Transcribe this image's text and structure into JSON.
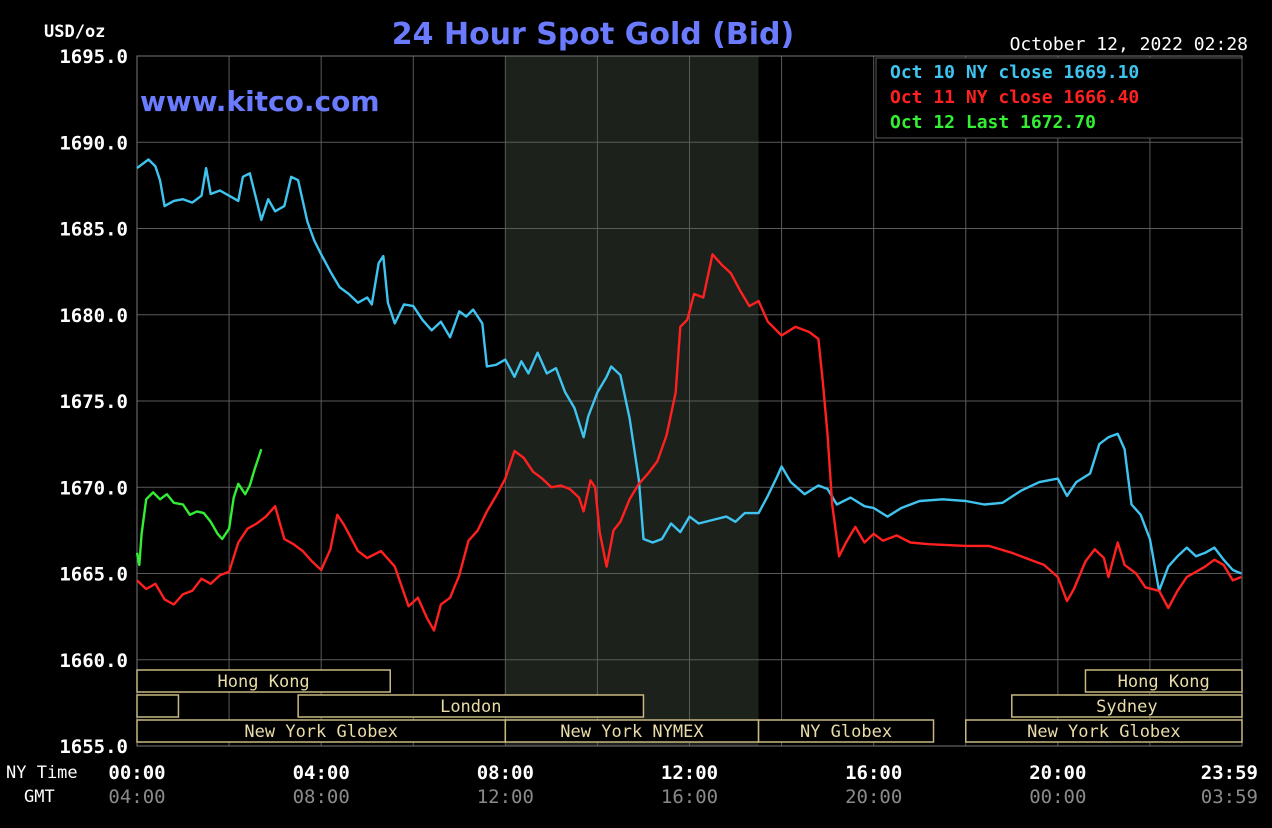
{
  "title": "24 Hour Spot Gold (Bid)",
  "site": "www.kitco.com",
  "timestamp": "October 12, 2022 02:28",
  "y_unit": "USD/oz",
  "row_labels": {
    "ny": "NY Time",
    "gmt": "GMT"
  },
  "colors": {
    "background": "#000000",
    "grid": "#5a5a5a",
    "title": "#6b7bff",
    "site": "#6b7bff",
    "text": "#ffffff",
    "gmt_text": "#8a8a8a",
    "oct10": "#3fc3ef",
    "oct11": "#ff2020",
    "oct12": "#33ee33",
    "session_fill": "#000000",
    "session_border": "#c8b880",
    "session_text": "#e8dca8",
    "nymex_shade": "#1c211c"
  },
  "chart_data": {
    "type": "line",
    "title": "24 Hour Spot Gold (Bid)",
    "xlabel": "",
    "ylabel": "USD/oz",
    "x_unit": "hours (NY time)",
    "xlim": [
      0,
      24
    ],
    "ylim": [
      1655,
      1695
    ],
    "grid": true,
    "legend_position": "top-right",
    "y_ticks": [
      "1695.0",
      "1690.0",
      "1685.0",
      "1680.0",
      "1675.0",
      "1670.0",
      "1665.0",
      "1660.0",
      "1655.0"
    ],
    "x_ticks_ny": [
      {
        "x": 0,
        "label": "00:00"
      },
      {
        "x": 4,
        "label": "04:00"
      },
      {
        "x": 8,
        "label": "08:00"
      },
      {
        "x": 12,
        "label": "12:00"
      },
      {
        "x": 16,
        "label": "16:00"
      },
      {
        "x": 20,
        "label": "20:00"
      },
      {
        "x": 23.983,
        "label": "23:59"
      }
    ],
    "x_ticks_gmt": [
      {
        "x": 0,
        "label": "04:00"
      },
      {
        "x": 4,
        "label": "08:00"
      },
      {
        "x": 8,
        "label": "12:00"
      },
      {
        "x": 12,
        "label": "16:00"
      },
      {
        "x": 16,
        "label": "20:00"
      },
      {
        "x": 20,
        "label": "00:00"
      },
      {
        "x": 23.983,
        "label": "03:59"
      }
    ],
    "legend": [
      {
        "label": "Oct 10 NY close 1669.10",
        "color": "#3fc3ef"
      },
      {
        "label": "Oct 11 NY close 1666.40",
        "color": "#ff2020"
      },
      {
        "label": "Oct 12 Last 1672.70",
        "color": "#33ee33"
      }
    ],
    "nymex_shade": [
      8.0,
      13.5
    ],
    "series": [
      {
        "name": "Oct 10",
        "color": "#3fc3ef",
        "points": [
          [
            0.0,
            1688.5
          ],
          [
            0.25,
            1689.0
          ],
          [
            0.4,
            1688.6
          ],
          [
            0.5,
            1687.8
          ],
          [
            0.6,
            1686.3
          ],
          [
            0.8,
            1686.6
          ],
          [
            1.0,
            1686.7
          ],
          [
            1.2,
            1686.5
          ],
          [
            1.4,
            1686.9
          ],
          [
            1.5,
            1688.5
          ],
          [
            1.6,
            1687.0
          ],
          [
            1.8,
            1687.2
          ],
          [
            2.0,
            1686.9
          ],
          [
            2.2,
            1686.6
          ],
          [
            2.3,
            1688.0
          ],
          [
            2.45,
            1688.2
          ],
          [
            2.6,
            1686.6
          ],
          [
            2.7,
            1685.5
          ],
          [
            2.85,
            1686.7
          ],
          [
            3.0,
            1686.0
          ],
          [
            3.2,
            1686.3
          ],
          [
            3.35,
            1688.0
          ],
          [
            3.5,
            1687.8
          ],
          [
            3.7,
            1685.4
          ],
          [
            3.85,
            1684.3
          ],
          [
            4.0,
            1683.5
          ],
          [
            4.2,
            1682.5
          ],
          [
            4.4,
            1681.6
          ],
          [
            4.6,
            1681.2
          ],
          [
            4.8,
            1680.7
          ],
          [
            5.0,
            1681.0
          ],
          [
            5.1,
            1680.6
          ],
          [
            5.25,
            1683.0
          ],
          [
            5.35,
            1683.4
          ],
          [
            5.45,
            1680.7
          ],
          [
            5.6,
            1679.5
          ],
          [
            5.8,
            1680.6
          ],
          [
            6.0,
            1680.5
          ],
          [
            6.2,
            1679.7
          ],
          [
            6.4,
            1679.1
          ],
          [
            6.6,
            1679.6
          ],
          [
            6.8,
            1678.7
          ],
          [
            7.0,
            1680.2
          ],
          [
            7.15,
            1679.9
          ],
          [
            7.3,
            1680.3
          ],
          [
            7.5,
            1679.5
          ],
          [
            7.6,
            1677.0
          ],
          [
            7.8,
            1677.1
          ],
          [
            8.0,
            1677.4
          ],
          [
            8.2,
            1676.4
          ],
          [
            8.35,
            1677.3
          ],
          [
            8.5,
            1676.6
          ],
          [
            8.7,
            1677.8
          ],
          [
            8.9,
            1676.6
          ],
          [
            9.1,
            1676.9
          ],
          [
            9.3,
            1675.5
          ],
          [
            9.5,
            1674.6
          ],
          [
            9.7,
            1672.9
          ],
          [
            9.8,
            1674.1
          ],
          [
            10.0,
            1675.5
          ],
          [
            10.2,
            1676.4
          ],
          [
            10.3,
            1677.0
          ],
          [
            10.5,
            1676.5
          ],
          [
            10.7,
            1674.0
          ],
          [
            10.9,
            1670.4
          ],
          [
            11.0,
            1667.0
          ],
          [
            11.2,
            1666.8
          ],
          [
            11.4,
            1667.0
          ],
          [
            11.6,
            1667.9
          ],
          [
            11.8,
            1667.4
          ],
          [
            12.0,
            1668.3
          ],
          [
            12.2,
            1667.9
          ],
          [
            12.5,
            1668.1
          ],
          [
            12.8,
            1668.3
          ],
          [
            13.0,
            1668.0
          ],
          [
            13.2,
            1668.5
          ],
          [
            13.5,
            1668.5
          ],
          [
            13.7,
            1669.5
          ],
          [
            13.9,
            1670.6
          ],
          [
            14.0,
            1671.2
          ],
          [
            14.2,
            1670.3
          ],
          [
            14.5,
            1669.6
          ],
          [
            14.8,
            1670.1
          ],
          [
            15.0,
            1669.9
          ],
          [
            15.2,
            1669.0
          ],
          [
            15.5,
            1669.4
          ],
          [
            15.8,
            1668.9
          ],
          [
            16.0,
            1668.8
          ],
          [
            16.3,
            1668.3
          ],
          [
            16.6,
            1668.8
          ],
          [
            17.0,
            1669.2
          ],
          [
            17.5,
            1669.3
          ],
          [
            18.0,
            1669.2
          ],
          [
            18.4,
            1669.0
          ],
          [
            18.8,
            1669.1
          ],
          [
            19.2,
            1669.8
          ],
          [
            19.6,
            1670.3
          ],
          [
            20.0,
            1670.5
          ],
          [
            20.2,
            1669.5
          ],
          [
            20.4,
            1670.3
          ],
          [
            20.7,
            1670.8
          ],
          [
            20.9,
            1672.5
          ],
          [
            21.1,
            1672.9
          ],
          [
            21.3,
            1673.1
          ],
          [
            21.45,
            1672.2
          ],
          [
            21.6,
            1669.0
          ],
          [
            21.8,
            1668.4
          ],
          [
            22.0,
            1667.0
          ],
          [
            22.2,
            1664.0
          ],
          [
            22.4,
            1665.4
          ],
          [
            22.6,
            1666.0
          ],
          [
            22.8,
            1666.5
          ],
          [
            23.0,
            1666.0
          ],
          [
            23.2,
            1666.2
          ],
          [
            23.4,
            1666.5
          ],
          [
            23.6,
            1665.8
          ],
          [
            23.8,
            1665.2
          ],
          [
            23.983,
            1665.0
          ]
        ]
      },
      {
        "name": "Oct 11",
        "color": "#ff2020",
        "points": [
          [
            0.0,
            1664.6
          ],
          [
            0.2,
            1664.1
          ],
          [
            0.4,
            1664.4
          ],
          [
            0.6,
            1663.5
          ],
          [
            0.8,
            1663.2
          ],
          [
            1.0,
            1663.8
          ],
          [
            1.2,
            1664.0
          ],
          [
            1.4,
            1664.7
          ],
          [
            1.6,
            1664.4
          ],
          [
            1.8,
            1664.9
          ],
          [
            2.0,
            1665.1
          ],
          [
            2.2,
            1666.8
          ],
          [
            2.4,
            1667.6
          ],
          [
            2.6,
            1667.9
          ],
          [
            2.8,
            1668.3
          ],
          [
            3.0,
            1668.9
          ],
          [
            3.2,
            1667.0
          ],
          [
            3.4,
            1666.7
          ],
          [
            3.6,
            1666.3
          ],
          [
            3.8,
            1665.7
          ],
          [
            4.0,
            1665.2
          ],
          [
            4.2,
            1666.4
          ],
          [
            4.35,
            1668.4
          ],
          [
            4.5,
            1667.8
          ],
          [
            4.8,
            1666.3
          ],
          [
            5.0,
            1665.9
          ],
          [
            5.3,
            1666.3
          ],
          [
            5.6,
            1665.4
          ],
          [
            5.9,
            1663.1
          ],
          [
            6.1,
            1663.6
          ],
          [
            6.3,
            1662.4
          ],
          [
            6.45,
            1661.7
          ],
          [
            6.6,
            1663.2
          ],
          [
            6.8,
            1663.6
          ],
          [
            7.0,
            1664.9
          ],
          [
            7.2,
            1666.9
          ],
          [
            7.4,
            1667.5
          ],
          [
            7.6,
            1668.6
          ],
          [
            7.8,
            1669.5
          ],
          [
            8.0,
            1670.5
          ],
          [
            8.2,
            1672.1
          ],
          [
            8.4,
            1671.7
          ],
          [
            8.6,
            1670.9
          ],
          [
            8.8,
            1670.5
          ],
          [
            9.0,
            1670.0
          ],
          [
            9.2,
            1670.1
          ],
          [
            9.4,
            1669.9
          ],
          [
            9.6,
            1669.4
          ],
          [
            9.7,
            1668.6
          ],
          [
            9.85,
            1670.4
          ],
          [
            9.95,
            1670.0
          ],
          [
            10.05,
            1667.4
          ],
          [
            10.2,
            1665.4
          ],
          [
            10.35,
            1667.5
          ],
          [
            10.5,
            1668.0
          ],
          [
            10.7,
            1669.3
          ],
          [
            10.9,
            1670.2
          ],
          [
            11.1,
            1670.8
          ],
          [
            11.3,
            1671.5
          ],
          [
            11.5,
            1673.0
          ],
          [
            11.7,
            1675.5
          ],
          [
            11.8,
            1679.3
          ],
          [
            11.95,
            1679.7
          ],
          [
            12.1,
            1681.2
          ],
          [
            12.3,
            1681.0
          ],
          [
            12.5,
            1683.5
          ],
          [
            12.7,
            1682.9
          ],
          [
            12.9,
            1682.4
          ],
          [
            13.1,
            1681.4
          ],
          [
            13.3,
            1680.5
          ],
          [
            13.5,
            1680.8
          ],
          [
            13.7,
            1679.6
          ],
          [
            14.0,
            1678.8
          ],
          [
            14.3,
            1679.3
          ],
          [
            14.6,
            1679.0
          ],
          [
            14.8,
            1678.6
          ],
          [
            14.9,
            1676.0
          ],
          [
            15.0,
            1673.0
          ],
          [
            15.1,
            1669.0
          ],
          [
            15.25,
            1666.0
          ],
          [
            15.4,
            1666.8
          ],
          [
            15.6,
            1667.7
          ],
          [
            15.8,
            1666.8
          ],
          [
            16.0,
            1667.3
          ],
          [
            16.2,
            1666.9
          ],
          [
            16.5,
            1667.2
          ],
          [
            16.8,
            1666.8
          ],
          [
            17.2,
            1666.7
          ],
          [
            18.0,
            1666.6
          ],
          [
            18.5,
            1666.6
          ],
          [
            19.0,
            1666.2
          ],
          [
            19.4,
            1665.8
          ],
          [
            19.7,
            1665.5
          ],
          [
            20.0,
            1664.8
          ],
          [
            20.2,
            1663.4
          ],
          [
            20.35,
            1664.1
          ],
          [
            20.6,
            1665.7
          ],
          [
            20.8,
            1666.4
          ],
          [
            21.0,
            1665.9
          ],
          [
            21.1,
            1664.8
          ],
          [
            21.3,
            1666.8
          ],
          [
            21.45,
            1665.5
          ],
          [
            21.7,
            1665.0
          ],
          [
            21.9,
            1664.2
          ],
          [
            22.2,
            1664.0
          ],
          [
            22.4,
            1663.0
          ],
          [
            22.6,
            1664.0
          ],
          [
            22.8,
            1664.8
          ],
          [
            23.0,
            1665.1
          ],
          [
            23.2,
            1665.4
          ],
          [
            23.4,
            1665.8
          ],
          [
            23.6,
            1665.5
          ],
          [
            23.8,
            1664.6
          ],
          [
            23.983,
            1664.8
          ]
        ]
      },
      {
        "name": "Oct 12",
        "color": "#33ee33",
        "points": [
          [
            0.0,
            1666.2
          ],
          [
            0.05,
            1665.5
          ],
          [
            0.1,
            1667.3
          ],
          [
            0.2,
            1669.3
          ],
          [
            0.35,
            1669.7
          ],
          [
            0.5,
            1669.3
          ],
          [
            0.65,
            1669.6
          ],
          [
            0.8,
            1669.1
          ],
          [
            1.0,
            1669.0
          ],
          [
            1.15,
            1668.4
          ],
          [
            1.3,
            1668.6
          ],
          [
            1.45,
            1668.5
          ],
          [
            1.6,
            1668.0
          ],
          [
            1.75,
            1667.3
          ],
          [
            1.85,
            1667.0
          ],
          [
            2.0,
            1667.6
          ],
          [
            2.1,
            1669.4
          ],
          [
            2.2,
            1670.2
          ],
          [
            2.35,
            1669.6
          ],
          [
            2.45,
            1670.1
          ],
          [
            2.55,
            1671.0
          ],
          [
            2.65,
            1671.8
          ],
          [
            2.7,
            1672.2
          ]
        ]
      }
    ],
    "sessions": [
      {
        "label": "Hong Kong",
        "row": 0,
        "start": 0.0,
        "end": 5.5
      },
      {
        "label": "Hong Kong",
        "row": 0,
        "start": 20.6,
        "end": 24.0
      },
      {
        "label": "",
        "row": 1,
        "start": 0.0,
        "end": 0.9
      },
      {
        "label": "London",
        "row": 1,
        "start": 3.5,
        "end": 11.0
      },
      {
        "label": "Sydney",
        "row": 1,
        "start": 19.0,
        "end": 24.0
      },
      {
        "label": "New York Globex",
        "row": 2,
        "start": 0.0,
        "end": 8.0
      },
      {
        "label": "New York NYMEX",
        "row": 2,
        "start": 8.0,
        "end": 13.5
      },
      {
        "label": "NY Globex",
        "row": 2,
        "start": 13.5,
        "end": 17.3
      },
      {
        "label": "New York Globex",
        "row": 2,
        "start": 18.0,
        "end": 24.0
      }
    ]
  }
}
